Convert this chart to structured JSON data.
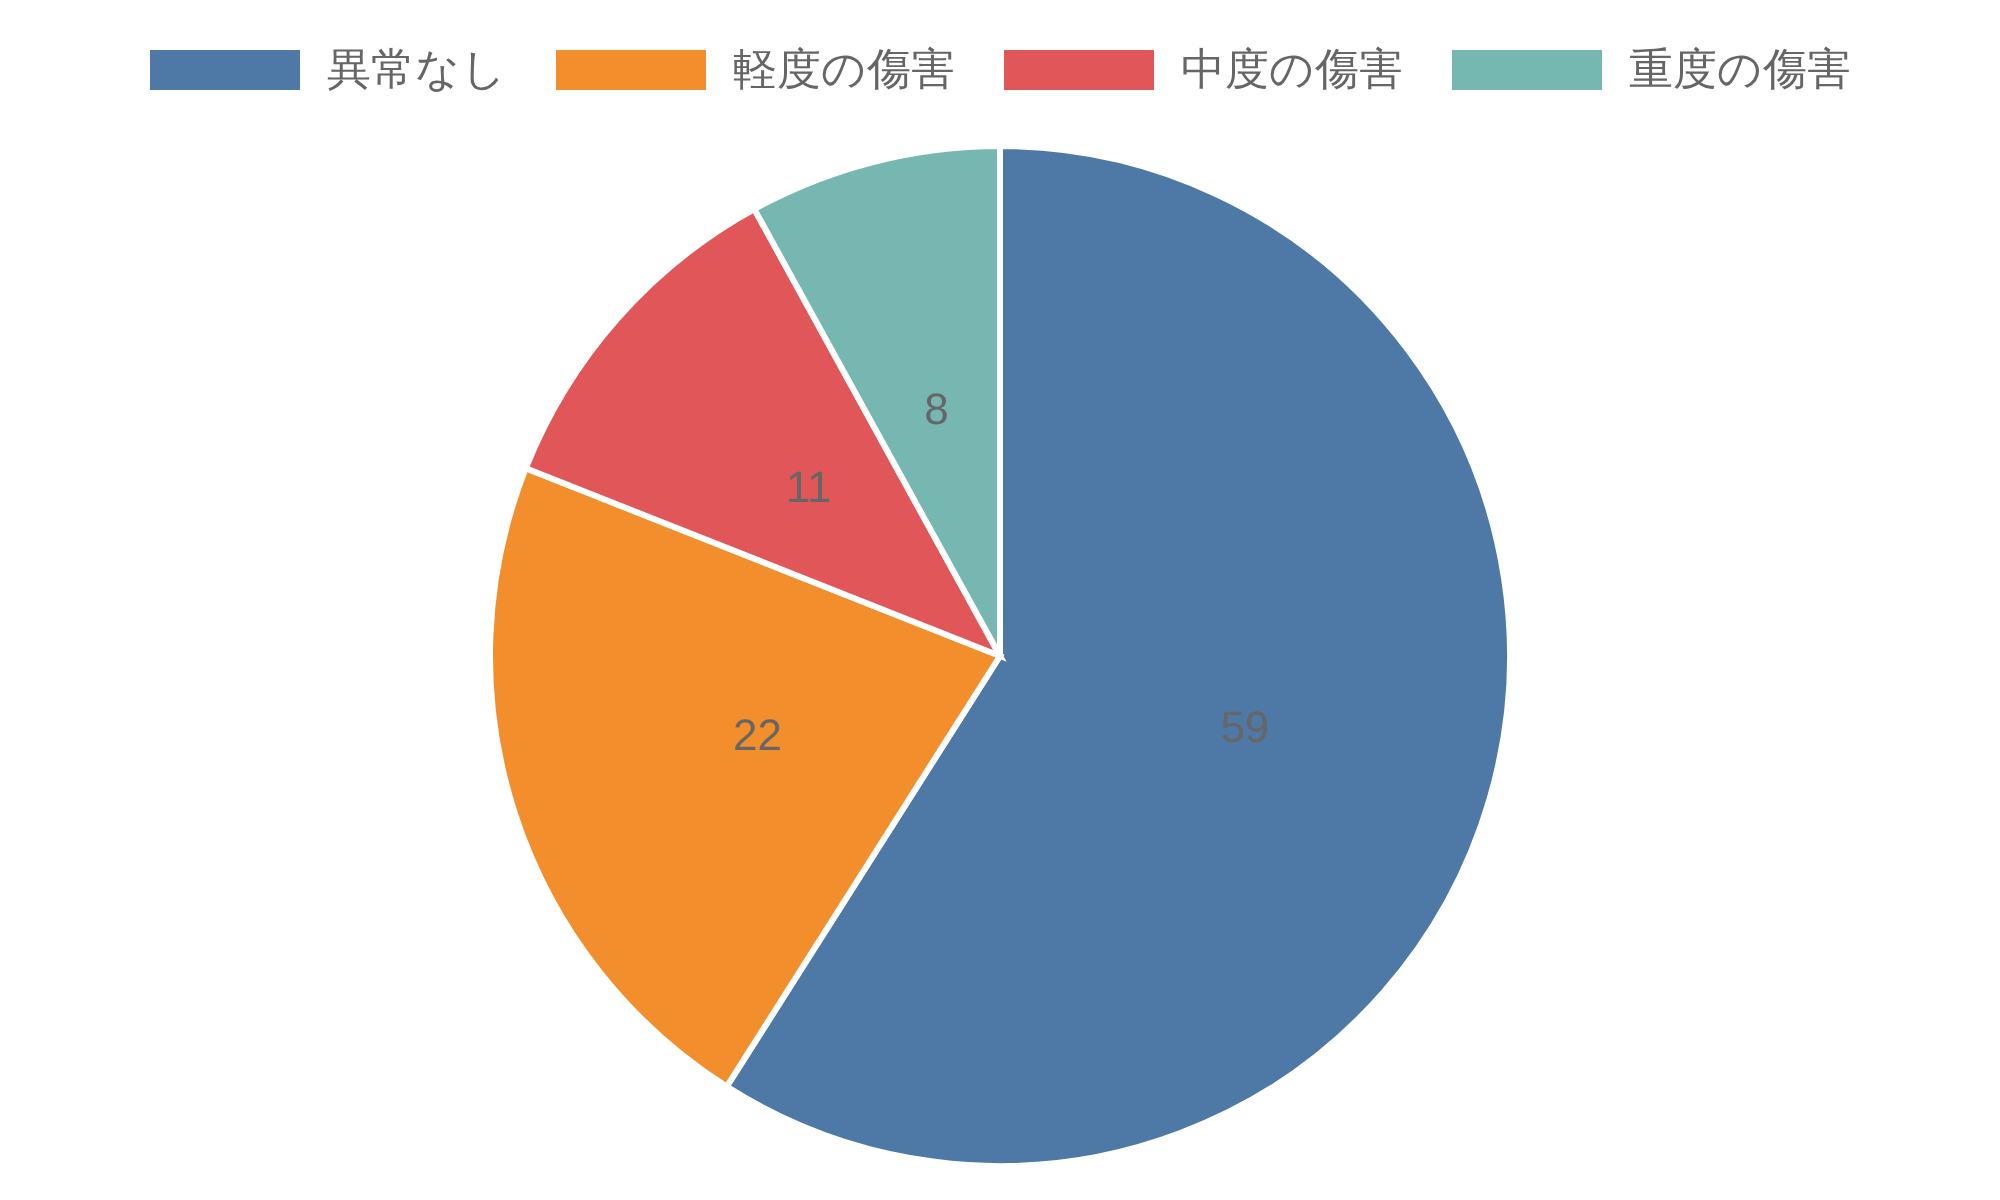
{
  "chart_data": {
    "type": "pie",
    "categories": [
      "異常なし",
      "軽度の傷害",
      "中度の傷害",
      "重度の傷害"
    ],
    "values": [
      59,
      22,
      11,
      8
    ],
    "colors": [
      "#4e79a7",
      "#f28e2b",
      "#e15759",
      "#76b7b2"
    ],
    "data_labels": true,
    "legend": "top"
  }
}
